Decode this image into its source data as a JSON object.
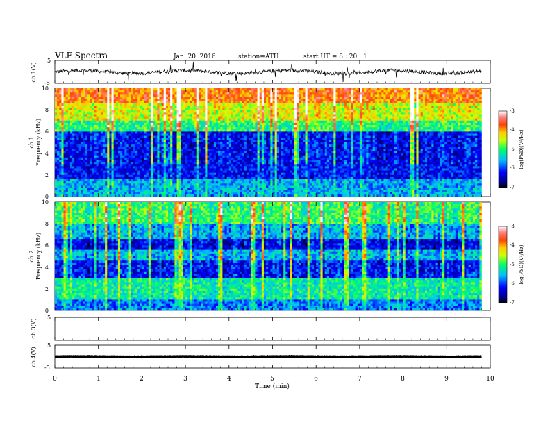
{
  "header": {
    "title": "VLF  Spectra",
    "date": "Jan. 20. 2016",
    "station": "station=ATH",
    "start": "start  UT  =   8  : 20 : 1"
  },
  "chart_data": [
    {
      "type": "line",
      "name": "ch1-waveform",
      "ylabel": "ch.1(V)",
      "ylim": [
        -5,
        5
      ],
      "yticks": [
        "5",
        "-5"
      ],
      "xlim": [
        0,
        10
      ],
      "x_end": 9.8,
      "baseline": 0,
      "amplitude": 1.3
    },
    {
      "type": "heatmap",
      "name": "ch1-spectrogram",
      "ylabel_channel": "ch.1",
      "ylabel": "Frequency  (kHz)",
      "ylim": [
        0,
        10
      ],
      "yticks": [
        "0",
        "2",
        "4",
        "6",
        "8",
        "10"
      ],
      "xlim": [
        0,
        10
      ],
      "x_end": 9.8,
      "colorbar": {
        "label": "log(PSD)(V²/Hz)",
        "range": [
          -7,
          -3
        ],
        "ticks": [
          "-3",
          "-4",
          "-5",
          "-6",
          "-7"
        ]
      }
    },
    {
      "type": "heatmap",
      "name": "ch2-spectrogram",
      "ylabel_channel": "ch.2",
      "ylabel": "Frequency  (kHz)",
      "ylim": [
        0,
        10
      ],
      "yticks": [
        "0",
        "2",
        "4",
        "6",
        "8",
        "10"
      ],
      "xlim": [
        0,
        10
      ],
      "x_end": 9.8,
      "colorbar": {
        "label": "log(PSD)(V²/Hz)",
        "range": [
          -7,
          -3
        ],
        "ticks": [
          "-3",
          "-4",
          "-5",
          "-6",
          "-7"
        ]
      }
    },
    {
      "type": "line",
      "name": "ch3-waveform",
      "ylabel": "ch.3(V)",
      "ylim": [
        -5,
        5
      ],
      "yticks": [
        "5"
      ],
      "xlim": [
        0,
        10
      ],
      "x_end": 9.8,
      "baseline": 5,
      "amplitude": 0
    },
    {
      "type": "line",
      "name": "ch4-waveform",
      "ylabel": "ch.4(V)",
      "ylim": [
        -5,
        5
      ],
      "yticks": [
        "5",
        "-5"
      ],
      "xlim": [
        0,
        10
      ],
      "x_end": 9.8,
      "baseline": 0,
      "amplitude": 0.15
    }
  ],
  "xaxis": {
    "label": "Time  (min)",
    "ticks": [
      "0",
      "1",
      "2",
      "3",
      "4",
      "5",
      "6",
      "7",
      "8",
      "9",
      "10"
    ]
  }
}
